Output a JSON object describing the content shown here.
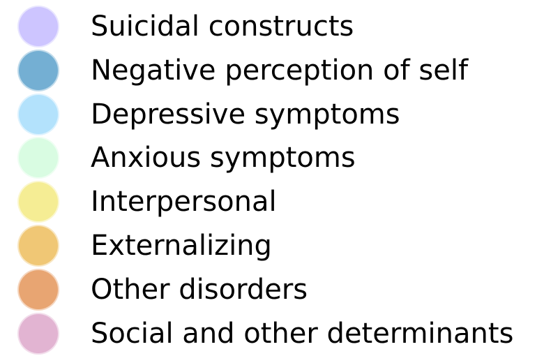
{
  "legend": {
    "items": [
      {
        "label": "Suicidal constructs",
        "color": "#cdc5ff"
      },
      {
        "label": "Negative perception of self",
        "color": "#74afd3"
      },
      {
        "label": "Depressive symptoms",
        "color": "#b3e2fc"
      },
      {
        "label": "Anxious symptoms",
        "color": "#d9fce2"
      },
      {
        "label": "Interpersonal",
        "color": "#f5ed94"
      },
      {
        "label": "Externalizing",
        "color": "#f0c775"
      },
      {
        "label": "Other disorders",
        "color": "#e8a572"
      },
      {
        "label": "Social and other determinants",
        "color": "#e2b4d2"
      }
    ]
  }
}
